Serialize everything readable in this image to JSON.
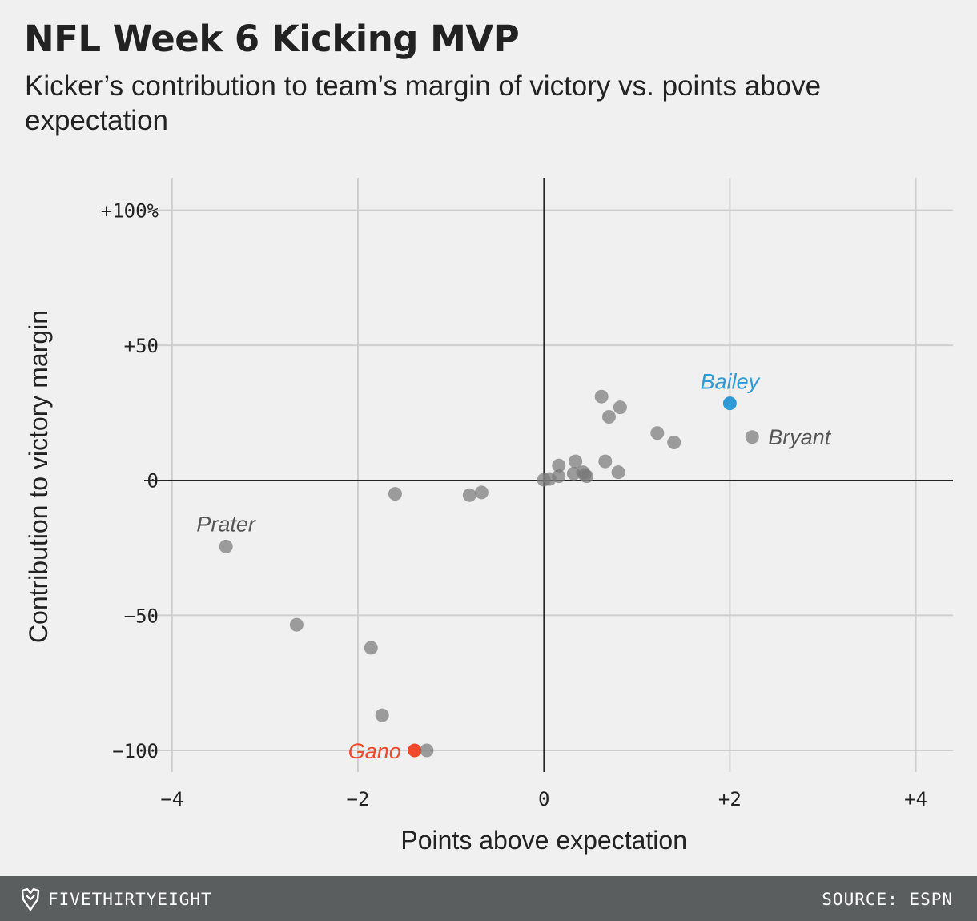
{
  "header": {
    "title": "NFL Week 6 Kicking MVP",
    "subtitle": "Kicker’s contribution to team’s margin of victory vs. points above expectation"
  },
  "chart_data": {
    "type": "scatter",
    "title": "NFL Week 6 Kicking MVP",
    "subtitle": "Kicker’s contribution to team’s margin of victory vs. points above expectation",
    "xlabel": "Points above expectation",
    "ylabel": "Contribution to victory margin",
    "xlim": [
      -4.3,
      4.4
    ],
    "ylim": [
      -108,
      112
    ],
    "x_ticks": [
      {
        "value": -4,
        "label": "−4"
      },
      {
        "value": -2,
        "label": "−2"
      },
      {
        "value": 0,
        "label": "0"
      },
      {
        "value": 2,
        "label": "+2"
      },
      {
        "value": 4,
        "label": "+4"
      }
    ],
    "y_ticks": [
      {
        "value": 100,
        "label": "+100%"
      },
      {
        "value": 50,
        "label": "+50"
      },
      {
        "value": 0,
        "label": "0"
      },
      {
        "value": -50,
        "label": "−50"
      },
      {
        "value": -100,
        "label": "−100"
      }
    ],
    "grid": true,
    "colors": {
      "default": "#7a7a7a",
      "highlight_blue": "#2e9ad8",
      "highlight_red": "#f0492b",
      "label_gray": "#555555",
      "grid": "#cfcfcf",
      "zero_axis": "#222222"
    },
    "points": [
      {
        "x": -3.42,
        "y": -24.5,
        "label": "Prater",
        "color": "default"
      },
      {
        "x": -2.66,
        "y": -53.5
      },
      {
        "x": -1.86,
        "y": -62
      },
      {
        "x": -1.74,
        "y": -87
      },
      {
        "x": -1.39,
        "y": -100,
        "label": "Gano",
        "color": "highlight_red"
      },
      {
        "x": -1.26,
        "y": -100
      },
      {
        "x": -1.6,
        "y": -5
      },
      {
        "x": -0.8,
        "y": -5.5
      },
      {
        "x": -0.67,
        "y": -4.5
      },
      {
        "x": 0.0,
        "y": 0.2
      },
      {
        "x": 0.06,
        "y": 0.5
      },
      {
        "x": 0.16,
        "y": 1.5
      },
      {
        "x": 0.16,
        "y": 5.5
      },
      {
        "x": 0.32,
        "y": 2.5
      },
      {
        "x": 0.34,
        "y": 7
      },
      {
        "x": 0.42,
        "y": 3
      },
      {
        "x": 0.44,
        "y": 2
      },
      {
        "x": 0.46,
        "y": 1.5
      },
      {
        "x": 0.66,
        "y": 7
      },
      {
        "x": 0.8,
        "y": 3
      },
      {
        "x": 0.62,
        "y": 31
      },
      {
        "x": 0.7,
        "y": 23.5
      },
      {
        "x": 0.82,
        "y": 27
      },
      {
        "x": 1.22,
        "y": 17.5
      },
      {
        "x": 1.4,
        "y": 14
      },
      {
        "x": 2.0,
        "y": 28.5,
        "label": "Bailey",
        "color": "highlight_blue"
      },
      {
        "x": 2.24,
        "y": 16,
        "label": "Bryant",
        "color": "default"
      }
    ]
  },
  "footer": {
    "brand": "FIVETHIRTYEIGHT",
    "source": "SOURCE: ESPN"
  }
}
